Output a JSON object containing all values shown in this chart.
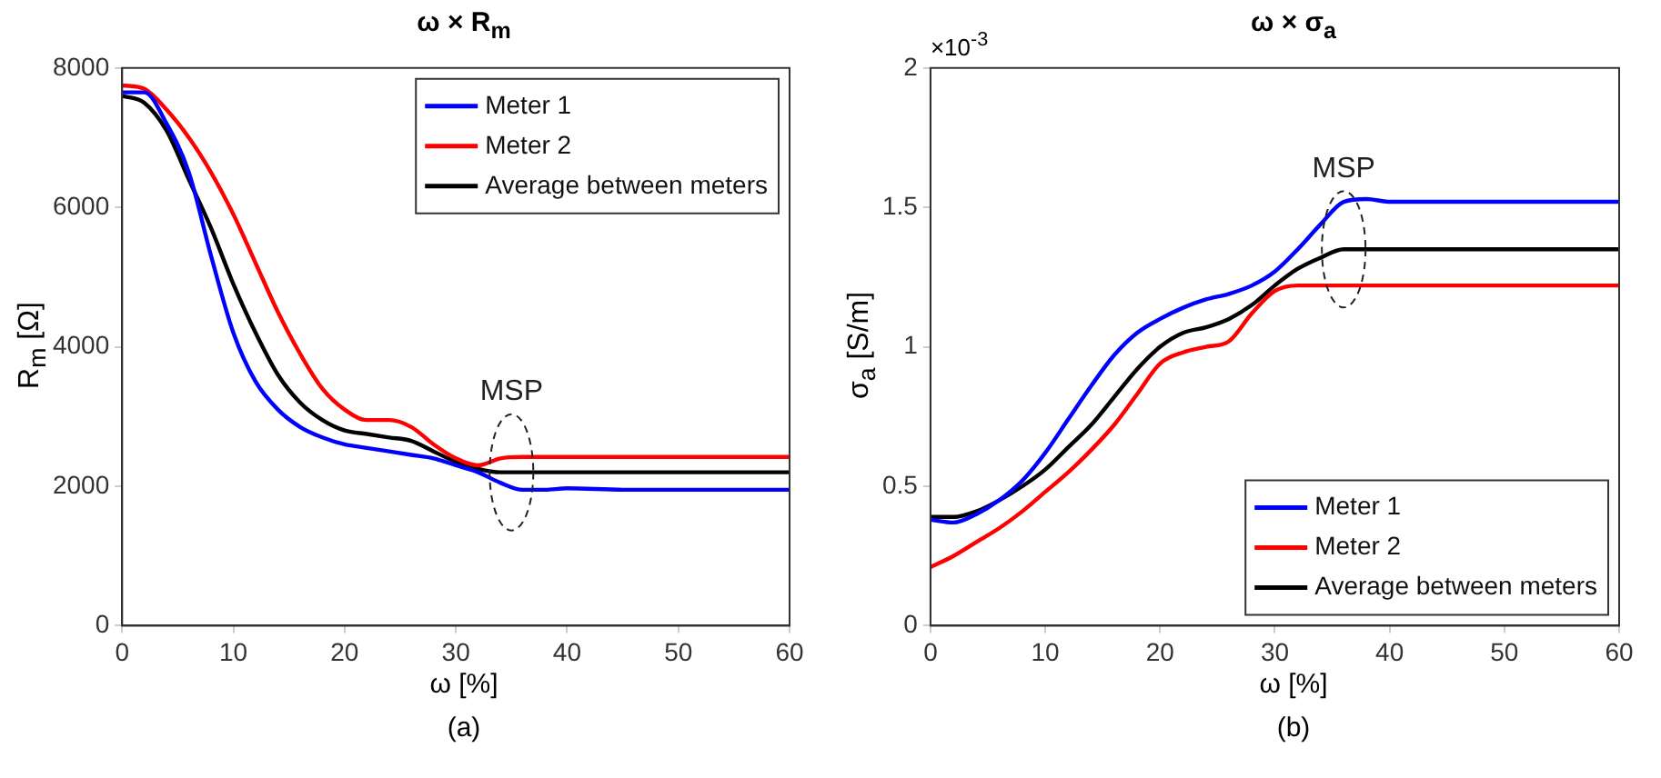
{
  "chart_data": [
    {
      "type": "line",
      "title": "ω × R$_{m}$",
      "xlabel": "ω [%]",
      "ylabel": "R$_{m}$ [Ω]",
      "xlim": [
        0,
        60
      ],
      "xticks": [
        0,
        10,
        20,
        30,
        40,
        50,
        60
      ],
      "ylim": [
        0,
        8000
      ],
      "yticks": [
        0,
        2000,
        4000,
        6000,
        8000
      ],
      "grid": false,
      "legend": "top right",
      "x": [
        0,
        2,
        4,
        6,
        8,
        10,
        12,
        14,
        16,
        18,
        20,
        22,
        24,
        26,
        28,
        30,
        32,
        34,
        36,
        38,
        40,
        45,
        50,
        55,
        60
      ],
      "series": [
        {
          "name": "Meter 1",
          "color": "#0000ff",
          "values": [
            7650,
            7650,
            7200,
            6500,
            5300,
            4200,
            3500,
            3100,
            2850,
            2700,
            2600,
            2550,
            2500,
            2450,
            2400,
            2300,
            2200,
            2050,
            1950,
            1950,
            1970,
            1950,
            1950,
            1950,
            1950
          ]
        },
        {
          "name": "Meter 2",
          "color": "#ff0000",
          "values": [
            7750,
            7700,
            7400,
            7000,
            6500,
            5900,
            5200,
            4500,
            3900,
            3400,
            3100,
            2950,
            2950,
            2850,
            2600,
            2400,
            2300,
            2400,
            2420,
            2420,
            2420,
            2420,
            2420,
            2420,
            2420
          ]
        },
        {
          "name": "Average between meters",
          "color": "#000000",
          "values": [
            7600,
            7500,
            7100,
            6400,
            5700,
            4900,
            4200,
            3600,
            3200,
            2950,
            2800,
            2750,
            2700,
            2650,
            2500,
            2350,
            2250,
            2200,
            2200,
            2200,
            2200,
            2200,
            2200,
            2200,
            2200
          ]
        }
      ],
      "annotations": [
        {
          "text": "MSP",
          "x": 35,
          "y": 2200
        },
        "(a)"
      ]
    },
    {
      "type": "line",
      "title": "ω × σ$_{a}$",
      "xlabel": "ω [%]",
      "ylabel": "σ$_{a}$ [S/m]",
      "xlim": [
        0,
        60
      ],
      "xticks": [
        0,
        10,
        20,
        30,
        40,
        50,
        60
      ],
      "ylim": [
        0,
        2
      ],
      "yticks": [
        0,
        0.5,
        1,
        1.5,
        2
      ],
      "grid": false,
      "legend": "bottom right",
      "x": [
        0,
        2,
        4,
        6,
        8,
        10,
        12,
        14,
        16,
        18,
        20,
        22,
        24,
        26,
        28,
        30,
        32,
        34,
        36,
        38,
        40,
        45,
        50,
        55,
        60
      ],
      "series": [
        {
          "name": "Meter 1",
          "color": "#0000ff",
          "values": [
            0.38,
            0.37,
            0.4,
            0.45,
            0.52,
            0.62,
            0.74,
            0.86,
            0.97,
            1.05,
            1.1,
            1.14,
            1.17,
            1.19,
            1.22,
            1.27,
            1.35,
            1.44,
            1.52,
            1.53,
            1.52,
            1.52,
            1.52,
            1.52,
            1.52
          ]
        },
        {
          "name": "Meter 2",
          "color": "#ff0000",
          "values": [
            0.21,
            0.25,
            0.3,
            0.35,
            0.41,
            0.48,
            0.55,
            0.63,
            0.72,
            0.83,
            0.94,
            0.98,
            1.0,
            1.02,
            1.12,
            1.2,
            1.22,
            1.22,
            1.22,
            1.22,
            1.22,
            1.22,
            1.22,
            1.22,
            1.22
          ]
        },
        {
          "name": "Average between meters",
          "color": "#000000",
          "values": [
            0.39,
            0.39,
            0.41,
            0.45,
            0.5,
            0.56,
            0.64,
            0.72,
            0.82,
            0.92,
            1.0,
            1.05,
            1.07,
            1.1,
            1.15,
            1.22,
            1.28,
            1.32,
            1.35,
            1.35,
            1.35,
            1.35,
            1.35,
            1.35,
            1.35
          ]
        }
      ],
      "annotations": [
        "×10$^{-3}$",
        {
          "text": "MSP",
          "x": 36,
          "y": 1.35
        },
        "(b)"
      ]
    }
  ]
}
